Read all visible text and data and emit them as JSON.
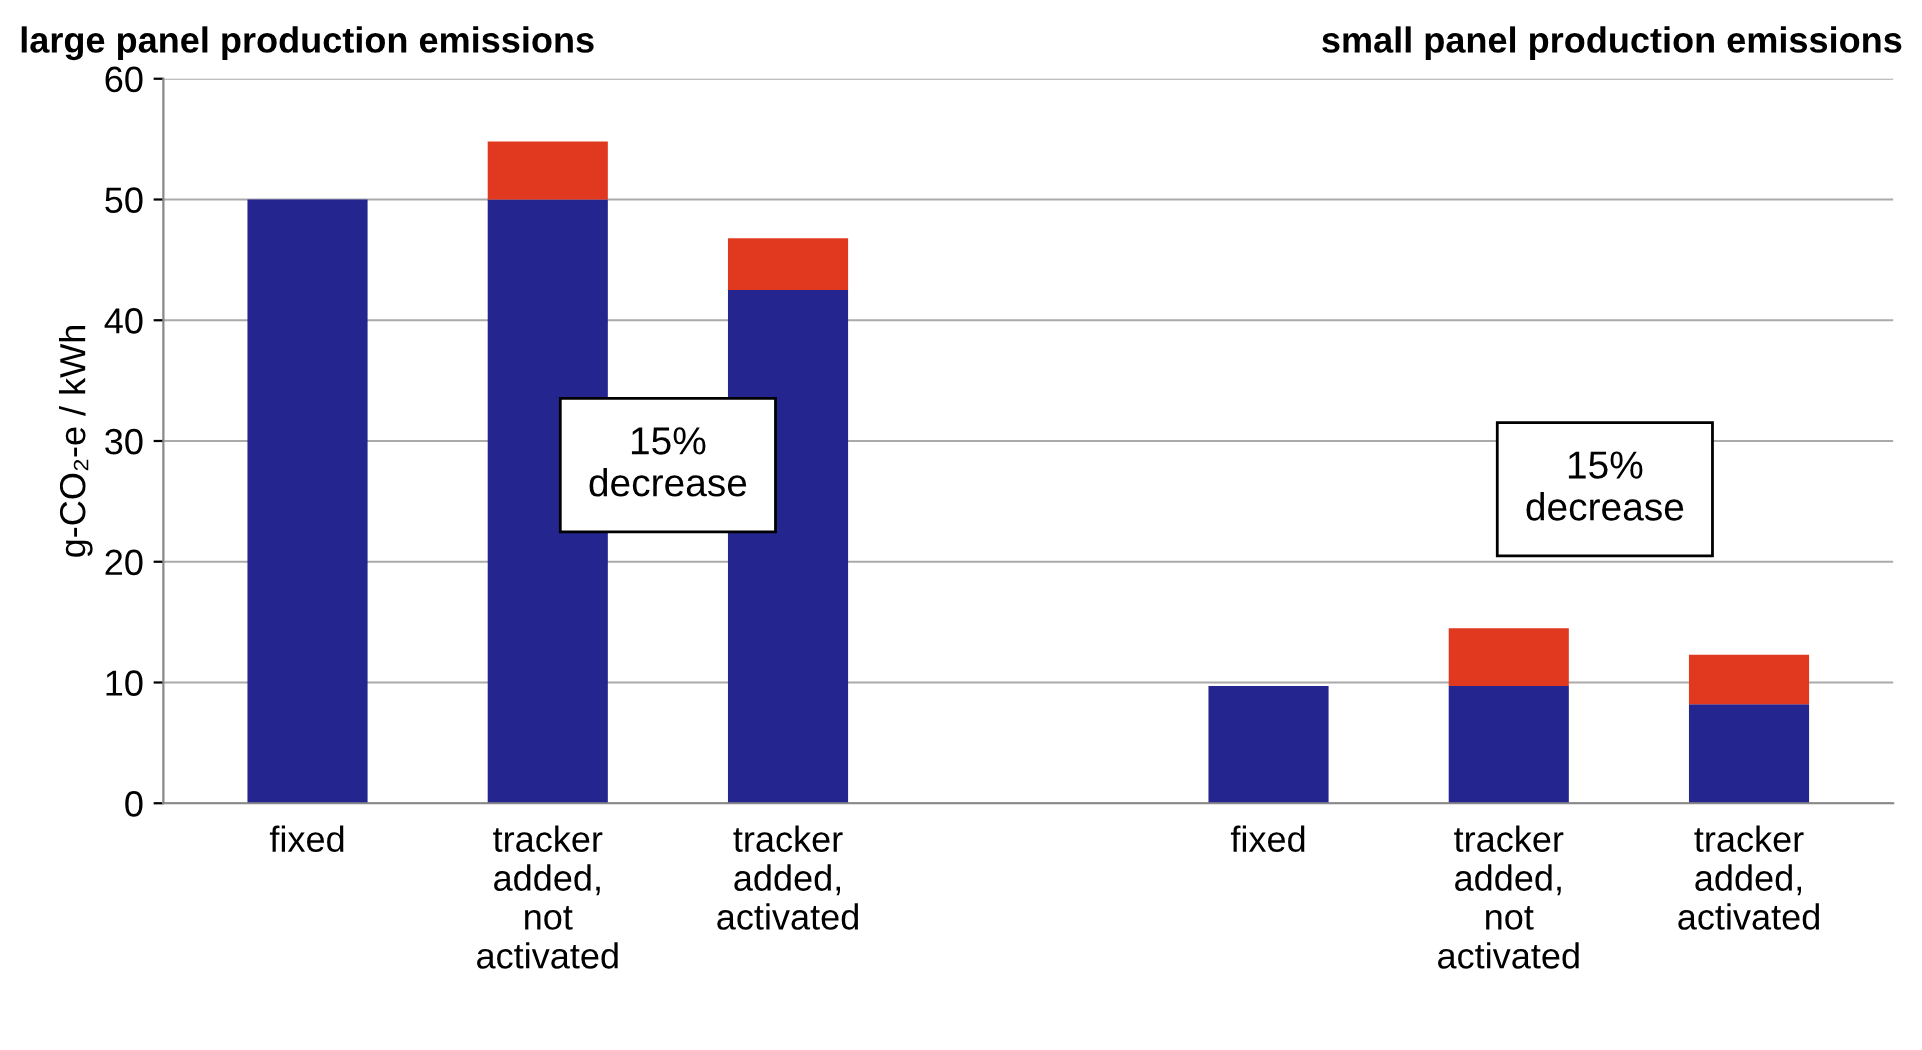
{
  "chart_data": {
    "type": "bar",
    "stacked": true,
    "title": "large panel production emissions",
    "ylabel": "g-CO₂-e / kWh",
    "categories": [
      "fixed",
      "tracker\nadded,\nnot\nactivated",
      "tracker\nadded,\nactivated",
      null,
      "fixed",
      "tracker\nadded,\nnot\nactivated",
      "tracker\nadded,\nactivated"
    ],
    "series": [
      {
        "color": "#25258f",
        "values": [
          50,
          50,
          42.5,
          null,
          9.7,
          9.7,
          8.2
        ]
      },
      {
        "color": "#e0391f",
        "values": [
          0,
          4.8,
          4.3,
          null,
          0,
          4.8,
          4.1
        ]
      }
    ],
    "ylim": [
      0,
      60
    ],
    "yticks": [
      0,
      10,
      20,
      30,
      40,
      50,
      60
    ],
    "grid": "y",
    "legend": false,
    "annotations": [
      "small panel production emissions",
      "15%\ndecrease",
      "15%\ndecrease"
    ]
  }
}
